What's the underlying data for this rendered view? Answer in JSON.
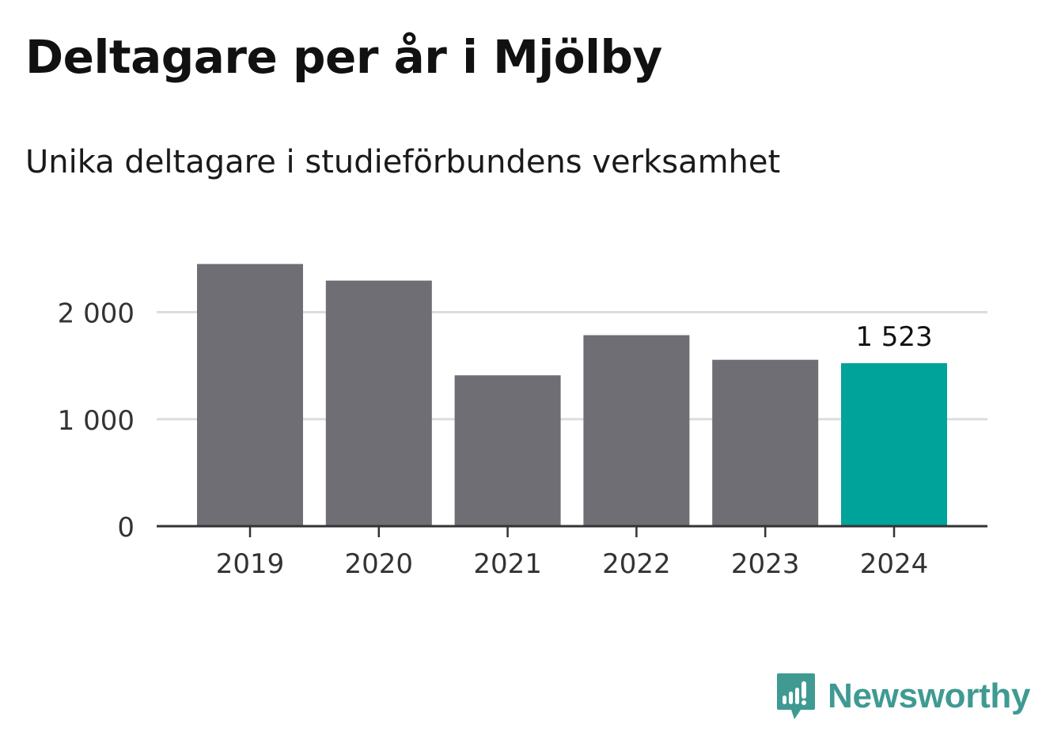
{
  "title": "Deltagare per år i Mjölby",
  "subtitle": "Unika deltagare i studieförbundens verksamhet",
  "brand": {
    "name": "Newsworthy",
    "icon": "newsworthy-logo-icon",
    "color": "#3f9a92"
  },
  "chart_data": {
    "type": "bar",
    "categories": [
      "2019",
      "2020",
      "2021",
      "2022",
      "2023",
      "2024"
    ],
    "values": [
      2450,
      2295,
      1410,
      1785,
      1555,
      1523
    ],
    "y_ticks": [
      0,
      1000,
      2000
    ],
    "y_tick_labels": [
      "0",
      "1 000",
      "2 000"
    ],
    "ylim": [
      0,
      2500
    ],
    "grid": true,
    "highlight": {
      "index": 5,
      "label": "1 523"
    },
    "colors": {
      "bar": "#6f6e74",
      "highlight": "#00a39a",
      "grid": "#dddddd",
      "axis": "#333333"
    }
  }
}
